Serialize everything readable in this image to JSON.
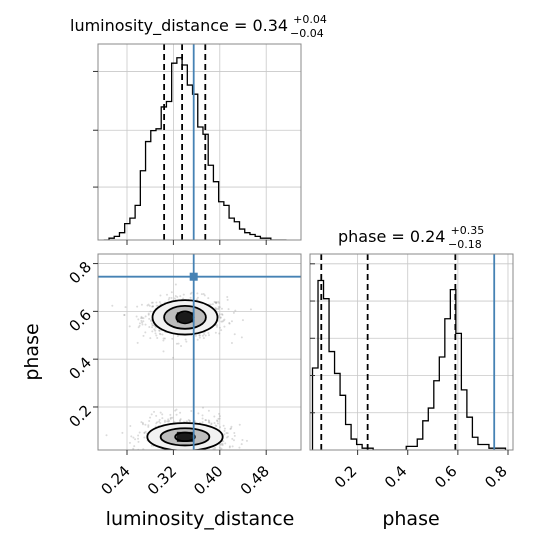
{
  "chart_data": [
    {
      "panel": "luminosity_distance-1d",
      "type": "histogram",
      "title": {
        "name": "luminosity_distance",
        "median": "0.34",
        "plus": "+0.04",
        "minus": "−0.04"
      },
      "xlim": [
        0.19,
        0.54
      ],
      "ylim": [
        0,
        1.0
      ],
      "bin_edges": [
        0.2,
        0.209,
        0.218,
        0.227,
        0.236,
        0.245,
        0.254,
        0.263,
        0.272,
        0.281,
        0.29,
        0.299,
        0.308,
        0.317,
        0.326,
        0.335,
        0.344,
        0.353,
        0.362,
        0.371,
        0.38,
        0.389,
        0.398,
        0.407,
        0.416,
        0.425,
        0.434,
        0.443,
        0.452,
        0.461,
        0.47,
        0.479,
        0.488,
        0.497,
        0.506,
        0.515
      ],
      "counts": [
        0.0,
        0.01,
        0.02,
        0.04,
        0.09,
        0.12,
        0.19,
        0.38,
        0.54,
        0.6,
        0.61,
        0.73,
        0.76,
        0.97,
        1.0,
        0.96,
        0.85,
        0.8,
        0.62,
        0.58,
        0.41,
        0.32,
        0.21,
        0.19,
        0.12,
        0.1,
        0.06,
        0.04,
        0.03,
        0.02,
        0.01,
        0.01,
        0.0,
        0.0,
        0.0
      ],
      "quantile_lines": [
        0.304,
        0.335,
        0.375
      ],
      "truth": 0.355,
      "xticks": [
        0.24,
        0.32,
        0.4,
        0.48
      ]
    },
    {
      "panel": "phase-1d",
      "type": "histogram",
      "title": {
        "name": "phase",
        "median": "0.24",
        "plus": "+0.35",
        "minus": "−0.18"
      },
      "xlim": [
        0.01,
        0.82
      ],
      "ylim": [
        0,
        1.0
      ],
      "bin_edges": [
        0.02,
        0.042,
        0.064,
        0.086,
        0.108,
        0.13,
        0.152,
        0.174,
        0.196,
        0.218,
        0.24,
        0.262,
        0.284,
        0.306,
        0.328,
        0.35,
        0.372,
        0.394,
        0.416,
        0.438,
        0.46,
        0.482,
        0.504,
        0.526,
        0.548,
        0.57,
        0.592,
        0.614,
        0.636,
        0.658,
        0.68,
        0.702,
        0.724,
        0.746,
        0.768,
        0.79
      ],
      "counts": [
        0.45,
        0.93,
        0.83,
        0.54,
        0.42,
        0.3,
        0.14,
        0.06,
        0.03,
        0.01,
        0.01,
        0.0,
        0.0,
        0.0,
        0.0,
        0.0,
        0.0,
        0.02,
        0.02,
        0.06,
        0.16,
        0.23,
        0.38,
        0.51,
        0.72,
        0.88,
        0.64,
        0.33,
        0.18,
        0.07,
        0.03,
        0.03,
        0.01,
        0.01,
        0.01
      ],
      "quantile_lines": [
        0.055,
        0.24,
        0.59
      ],
      "truth": 0.745,
      "xticks": [
        0.2,
        0.4,
        0.6,
        0.8
      ]
    },
    {
      "panel": "luminosity_distance-vs-phase-2d",
      "type": "scatter-contour",
      "xlim": [
        0.19,
        0.54
      ],
      "ylim": [
        0.02,
        0.84
      ],
      "xticks": [
        0.24,
        0.32,
        0.4,
        0.48
      ],
      "yticks": [
        0.2,
        0.4,
        0.6,
        0.8
      ],
      "xlabel": "luminosity_distance",
      "ylabel": "phase",
      "modes": [
        {
          "x": 0.34,
          "y": 0.575,
          "levels": [
            [
              0.015,
              0.025
            ],
            [
              0.036,
              0.048
            ],
            [
              0.056,
              0.072
            ]
          ]
        },
        {
          "x": 0.34,
          "y": 0.075,
          "levels": [
            [
              0.017,
              0.018
            ],
            [
              0.042,
              0.036
            ],
            [
              0.065,
              0.058
            ]
          ]
        }
      ],
      "truth": {
        "x": 0.355,
        "y": 0.745
      }
    }
  ],
  "bottom_labels": {
    "phase_x": "phase"
  }
}
